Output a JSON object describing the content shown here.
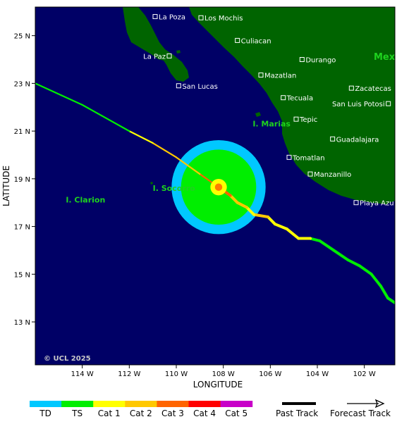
{
  "axes": {
    "x_title": "LONGITUDE",
    "y_title": "LATITUDE",
    "lon_range": [
      -116,
      -100.7
    ],
    "lat_range": [
      11.2,
      26.2
    ],
    "x_ticks": [
      {
        "value": -114,
        "label": "114 W"
      },
      {
        "value": -112,
        "label": "112 W"
      },
      {
        "value": -110,
        "label": "110 W"
      },
      {
        "value": -108,
        "label": "108 W"
      },
      {
        "value": -106,
        "label": "106 W"
      },
      {
        "value": -104,
        "label": "104 W"
      },
      {
        "value": -102,
        "label": "102 W"
      }
    ],
    "y_ticks": [
      {
        "value": 25,
        "label": "25 N"
      },
      {
        "value": 23,
        "label": "23 N"
      },
      {
        "value": 21,
        "label": "21 N"
      },
      {
        "value": 19,
        "label": "19 N"
      },
      {
        "value": 17,
        "label": "17 N"
      },
      {
        "value": 15,
        "label": "15 N"
      },
      {
        "value": 13,
        "label": "13 N"
      }
    ]
  },
  "map": {
    "ocean_color": "#000066",
    "land_color": "#006400",
    "country_label": "Mex",
    "watermark": "© UCL 2025"
  },
  "cities": [
    {
      "name": "La Poza",
      "lon": -110.9,
      "lat": 25.8,
      "side": "right"
    },
    {
      "name": "Los Mochis",
      "lon": -108.95,
      "lat": 25.75,
      "side": "right"
    },
    {
      "name": "Culiacan",
      "lon": -107.4,
      "lat": 24.8,
      "side": "right"
    },
    {
      "name": "La Paz",
      "lon": -110.3,
      "lat": 24.15,
      "side": "left"
    },
    {
      "name": "Durango",
      "lon": -104.65,
      "lat": 24.0,
      "side": "right"
    },
    {
      "name": "Mazatlan",
      "lon": -106.4,
      "lat": 23.35,
      "side": "right"
    },
    {
      "name": "San Lucas",
      "lon": -109.9,
      "lat": 22.9,
      "side": "right"
    },
    {
      "name": "Zacatecas",
      "lon": -102.55,
      "lat": 22.8,
      "side": "right"
    },
    {
      "name": "Tecuala",
      "lon": -105.45,
      "lat": 22.4,
      "side": "right"
    },
    {
      "name": "San Luis Potosi",
      "lon": -100.98,
      "lat": 22.15,
      "side": "left"
    },
    {
      "name": "Tepic",
      "lon": -104.9,
      "lat": 21.5,
      "side": "right"
    },
    {
      "name": "Guadalajara",
      "lon": -103.35,
      "lat": 20.67,
      "side": "right"
    },
    {
      "name": "Tomatlan",
      "lon": -105.2,
      "lat": 19.9,
      "side": "right"
    },
    {
      "name": "Manzanillo",
      "lon": -104.3,
      "lat": 19.2,
      "side": "right"
    },
    {
      "name": "Playa Azul",
      "lon": -102.35,
      "lat": 18.0,
      "side": "right"
    }
  ],
  "islands": [
    {
      "name": "I. Marias",
      "lon": -106.75,
      "lat": 21.2
    },
    {
      "name": "I. Socorro",
      "lon": -111.0,
      "lat": 18.5
    },
    {
      "name": "I. Clarion",
      "lon": -114.7,
      "lat": 18.0
    }
  ],
  "storm": {
    "center": {
      "lon": -108.2,
      "lat": 18.65
    },
    "td_radius_deg": 2.0,
    "ts_radius_deg": 1.6,
    "eye_radius_deg": 0.35,
    "colors": {
      "td": "#00c8ff",
      "ts": "#00ee00",
      "eye_outer": "#ffff00",
      "eye_inner": "#ff7a00"
    }
  },
  "track": {
    "past": [
      {
        "lon": -100.7,
        "lat": 13.8,
        "cat": "TS"
      },
      {
        "lon": -101.0,
        "lat": 14.0,
        "cat": "TS"
      },
      {
        "lon": -101.3,
        "lat": 14.5,
        "cat": "TS"
      },
      {
        "lon": -101.7,
        "lat": 15.0,
        "cat": "TS"
      },
      {
        "lon": -102.2,
        "lat": 15.35,
        "cat": "TS"
      },
      {
        "lon": -102.7,
        "lat": 15.6,
        "cat": "TS"
      },
      {
        "lon": -103.3,
        "lat": 16.0,
        "cat": "TS"
      },
      {
        "lon": -103.9,
        "lat": 16.4,
        "cat": "TS"
      },
      {
        "lon": -104.3,
        "lat": 16.5,
        "cat": "Cat 1"
      },
      {
        "lon": -104.8,
        "lat": 16.5,
        "cat": "Cat 1"
      },
      {
        "lon": -105.3,
        "lat": 16.9,
        "cat": "Cat 1"
      },
      {
        "lon": -105.8,
        "lat": 17.1,
        "cat": "Cat 1"
      },
      {
        "lon": -106.1,
        "lat": 17.4,
        "cat": "Cat 2"
      },
      {
        "lon": -106.7,
        "lat": 17.5,
        "cat": "Cat 1"
      },
      {
        "lon": -107.0,
        "lat": 17.8,
        "cat": "Cat 2"
      },
      {
        "lon": -107.4,
        "lat": 18.0,
        "cat": "Cat 2"
      },
      {
        "lon": -107.7,
        "lat": 18.3,
        "cat": "Cat 3"
      },
      {
        "lon": -108.2,
        "lat": 18.65,
        "cat": "Cat 3"
      }
    ],
    "forecast": [
      {
        "lon": -108.2,
        "lat": 18.65,
        "cat": "Cat 3"
      },
      {
        "lon": -109.0,
        "lat": 19.2,
        "cat": "Cat 2"
      },
      {
        "lon": -110.0,
        "lat": 19.9,
        "cat": "Cat 2"
      },
      {
        "lon": -111.0,
        "lat": 20.5,
        "cat": "Cat 1"
      },
      {
        "lon": -112.0,
        "lat": 21.0,
        "cat": "TS"
      },
      {
        "lon": -114.0,
        "lat": 22.1,
        "cat": "TS"
      },
      {
        "lon": -116.0,
        "lat": 23.0,
        "cat": "TS"
      }
    ]
  },
  "legend": {
    "categories": [
      {
        "label": "TD",
        "color": "#00c8ff"
      },
      {
        "label": "TS",
        "color": "#00ee00"
      },
      {
        "label": "Cat 1",
        "color": "#ffff00"
      },
      {
        "label": "Cat 2",
        "color": "#ffc800"
      },
      {
        "label": "Cat 3",
        "color": "#ff6400"
      },
      {
        "label": "Cat 4",
        "color": "#ff0000"
      },
      {
        "label": "Cat 5",
        "color": "#c800c8"
      }
    ],
    "past_track_label": "Past Track",
    "forecast_track_label": "Forecast Track"
  }
}
